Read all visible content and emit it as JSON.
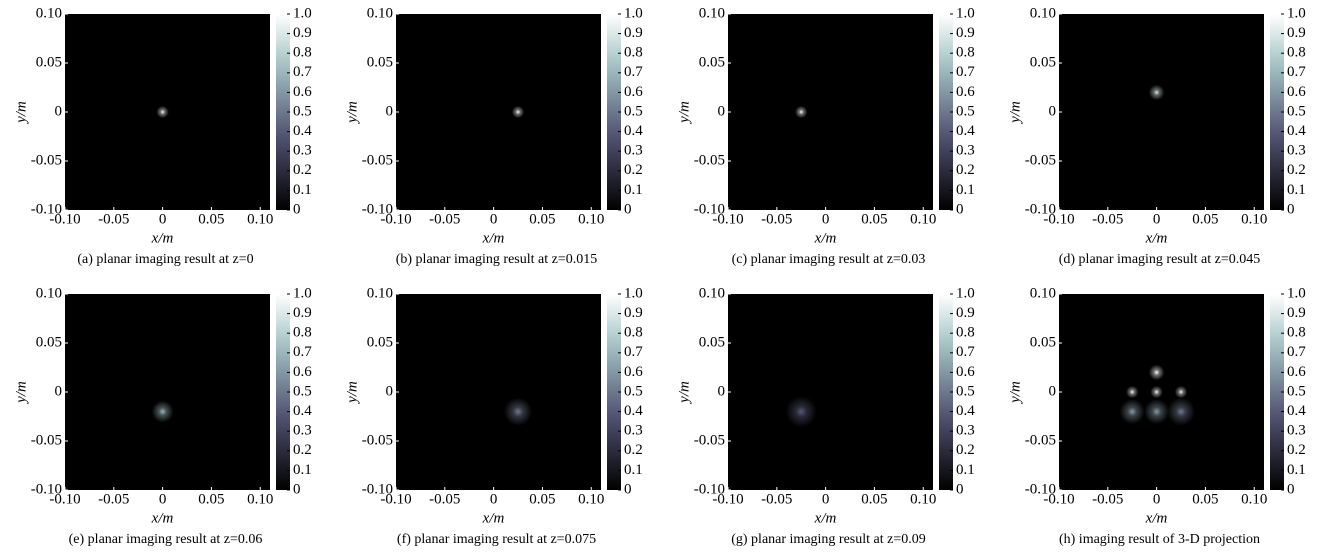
{
  "chart_data": [
    {
      "type": "heatmap",
      "caption": "(a) planar imaging result at z=0",
      "xlabel": "x/m",
      "ylabel": "y/m",
      "colormap": "bone",
      "xlim": [
        -0.1,
        0.11
      ],
      "ylim": [
        -0.1,
        0.1
      ],
      "xticks": [
        {
          "value": -0.1,
          "label": "-0.10"
        },
        -0.05,
        0,
        0.05,
        {
          "value": 0.1,
          "label": "0.10"
        }
      ],
      "yticks": [
        {
          "value": -0.1,
          "label": "-0.10"
        },
        -0.05,
        0,
        0.05,
        {
          "value": 0.1,
          "label": "0.10"
        }
      ],
      "clim": [
        0,
        1
      ],
      "cticks": [
        0,
        0.1,
        0.2,
        0.3,
        0.4,
        0.5,
        0.6,
        0.7,
        0.8,
        0.9,
        {
          "value": 1,
          "label": "1.0"
        }
      ],
      "spots": {
        "x": [
          0
        ],
        "y": [
          0
        ],
        "intensity": [
          1
        ],
        "radius": [
          0.004
        ]
      }
    },
    {
      "type": "heatmap",
      "caption": "(b) planar imaging result at z=0.015",
      "xlabel": "x/m",
      "ylabel": "y/m",
      "colormap": "bone",
      "xlim": [
        -0.1,
        0.11
      ],
      "ylim": [
        -0.1,
        0.1
      ],
      "xticks": [
        {
          "value": -0.1,
          "label": "-0.10"
        },
        -0.05,
        0,
        0.05,
        {
          "value": 0.1,
          "label": "0.10"
        }
      ],
      "yticks": [
        {
          "value": -0.1,
          "label": "-0.10"
        },
        -0.05,
        0,
        0.05,
        {
          "value": 0.1,
          "label": "0.10"
        }
      ],
      "clim": [
        0,
        1
      ],
      "cticks": [
        0,
        0.1,
        0.2,
        0.3,
        0.4,
        0.5,
        0.6,
        0.7,
        0.8,
        0.9,
        {
          "value": 1,
          "label": "1.0"
        }
      ],
      "spots": {
        "x": [
          0.025
        ],
        "y": [
          0
        ],
        "intensity": [
          1
        ],
        "radius": [
          0.004
        ]
      }
    },
    {
      "type": "heatmap",
      "caption": "(c) planar imaging result at z=0.03",
      "xlabel": "x/m",
      "ylabel": "y/m",
      "colormap": "bone",
      "xlim": [
        -0.1,
        0.11
      ],
      "ylim": [
        -0.1,
        0.1
      ],
      "xticks": [
        {
          "value": -0.1,
          "label": "-0.10"
        },
        -0.05,
        0,
        0.05,
        {
          "value": 0.1,
          "label": "0.10"
        }
      ],
      "yticks": [
        {
          "value": -0.1,
          "label": "-0.10"
        },
        -0.05,
        0,
        0.05,
        {
          "value": 0.1,
          "label": "0.10"
        }
      ],
      "clim": [
        0,
        1
      ],
      "cticks": [
        0,
        0.1,
        0.2,
        0.3,
        0.4,
        0.5,
        0.6,
        0.7,
        0.8,
        0.9,
        {
          "value": 1,
          "label": "1.0"
        }
      ],
      "spots": {
        "x": [
          -0.025
        ],
        "y": [
          0
        ],
        "intensity": [
          1
        ],
        "radius": [
          0.004
        ]
      }
    },
    {
      "type": "heatmap",
      "caption": "(d) planar imaging result at z=0.045",
      "xlabel": "x/m",
      "ylabel": "y/m",
      "colormap": "bone",
      "xlim": [
        -0.1,
        0.11
      ],
      "ylim": [
        -0.1,
        0.1
      ],
      "xticks": [
        {
          "value": -0.1,
          "label": "-0.10"
        },
        -0.05,
        0,
        0.05,
        {
          "value": 0.1,
          "label": "0.10"
        }
      ],
      "yticks": [
        {
          "value": -0.1,
          "label": "-0.10"
        },
        -0.05,
        0,
        0.05,
        {
          "value": 0.1,
          "label": "0.10"
        }
      ],
      "clim": [
        0,
        1
      ],
      "cticks": [
        0,
        0.1,
        0.2,
        0.3,
        0.4,
        0.5,
        0.6,
        0.7,
        0.8,
        0.9,
        {
          "value": 1,
          "label": "1.0"
        }
      ],
      "spots": {
        "x": [
          0
        ],
        "y": [
          0.02
        ],
        "intensity": [
          0.9
        ],
        "radius": [
          0.005
        ]
      }
    },
    {
      "type": "heatmap",
      "caption": "(e) planar imaging result at z=0.06",
      "xlabel": "x/m",
      "ylabel": "y/m",
      "colormap": "bone",
      "xlim": [
        -0.1,
        0.11
      ],
      "ylim": [
        -0.1,
        0.1
      ],
      "xticks": [
        {
          "value": -0.1,
          "label": "-0.10"
        },
        -0.05,
        0,
        0.05,
        {
          "value": 0.1,
          "label": "0.10"
        }
      ],
      "yticks": [
        {
          "value": -0.1,
          "label": "-0.10"
        },
        -0.05,
        0,
        0.05,
        {
          "value": 0.1,
          "label": "0.10"
        }
      ],
      "clim": [
        0,
        1
      ],
      "cticks": [
        0,
        0.1,
        0.2,
        0.3,
        0.4,
        0.5,
        0.6,
        0.7,
        0.8,
        0.9,
        {
          "value": 1,
          "label": "1.0"
        }
      ],
      "spots": {
        "x": [
          0
        ],
        "y": [
          -0.02
        ],
        "intensity": [
          0.7
        ],
        "radius": [
          0.007
        ]
      }
    },
    {
      "type": "heatmap",
      "caption": "(f) planar imaging result at z=0.075",
      "xlabel": "x/m",
      "ylabel": "y/m",
      "colormap": "bone",
      "xlim": [
        -0.1,
        0.11
      ],
      "ylim": [
        -0.1,
        0.1
      ],
      "xticks": [
        {
          "value": -0.1,
          "label": "-0.10"
        },
        -0.05,
        0,
        0.05,
        {
          "value": 0.1,
          "label": "0.10"
        }
      ],
      "yticks": [
        {
          "value": -0.1,
          "label": "-0.10"
        },
        -0.05,
        0,
        0.05,
        {
          "value": 0.1,
          "label": "0.10"
        }
      ],
      "clim": [
        0,
        1
      ],
      "cticks": [
        0,
        0.1,
        0.2,
        0.3,
        0.4,
        0.5,
        0.6,
        0.7,
        0.8,
        0.9,
        {
          "value": 1,
          "label": "1.0"
        }
      ],
      "spots": {
        "x": [
          0.025
        ],
        "y": [
          -0.02
        ],
        "intensity": [
          0.5
        ],
        "radius": [
          0.009
        ]
      }
    },
    {
      "type": "heatmap",
      "caption": "(g) planar imaging result at z=0.09",
      "xlabel": "x/m",
      "ylabel": "y/m",
      "colormap": "bone",
      "xlim": [
        -0.1,
        0.11
      ],
      "ylim": [
        -0.1,
        0.1
      ],
      "xticks": [
        {
          "value": -0.1,
          "label": "-0.10"
        },
        -0.05,
        0,
        0.05,
        {
          "value": 0.1,
          "label": "0.10"
        }
      ],
      "yticks": [
        {
          "value": -0.1,
          "label": "-0.10"
        },
        -0.05,
        0,
        0.05,
        {
          "value": 0.1,
          "label": "0.10"
        }
      ],
      "clim": [
        0,
        1
      ],
      "cticks": [
        0,
        0.1,
        0.2,
        0.3,
        0.4,
        0.5,
        0.6,
        0.7,
        0.8,
        0.9,
        {
          "value": 1,
          "label": "1.0"
        }
      ],
      "spots": {
        "x": [
          -0.025
        ],
        "y": [
          -0.02
        ],
        "intensity": [
          0.4
        ],
        "radius": [
          0.01
        ]
      }
    },
    {
      "type": "heatmap",
      "caption": "(h) imaging result of 3-D projection",
      "xlabel": "x/m",
      "ylabel": "y/m",
      "colormap": "bone",
      "xlim": [
        -0.1,
        0.11
      ],
      "ylim": [
        -0.1,
        0.1
      ],
      "xticks": [
        {
          "value": -0.1,
          "label": "-0.10"
        },
        -0.05,
        0,
        0.05,
        {
          "value": 0.1,
          "label": "0.10"
        }
      ],
      "yticks": [
        {
          "value": -0.1,
          "label": "-0.10"
        },
        -0.05,
        0,
        0.05,
        {
          "value": 0.1,
          "label": "0.10"
        }
      ],
      "clim": [
        0,
        1
      ],
      "cticks": [
        0,
        0.1,
        0.2,
        0.3,
        0.4,
        0.5,
        0.6,
        0.7,
        0.8,
        0.9,
        {
          "value": 1,
          "label": "1.0"
        }
      ],
      "spots": {
        "x": [
          0,
          -0.025,
          0,
          0.025,
          -0.025,
          0,
          0.025
        ],
        "y": [
          0.02,
          0,
          0,
          0,
          -0.02,
          -0.02,
          -0.02
        ],
        "intensity": [
          1,
          1,
          1,
          1,
          0.6,
          0.6,
          0.5
        ],
        "radius": [
          0.005,
          0.004,
          0.004,
          0.004,
          0.008,
          0.008,
          0.009
        ]
      }
    }
  ]
}
